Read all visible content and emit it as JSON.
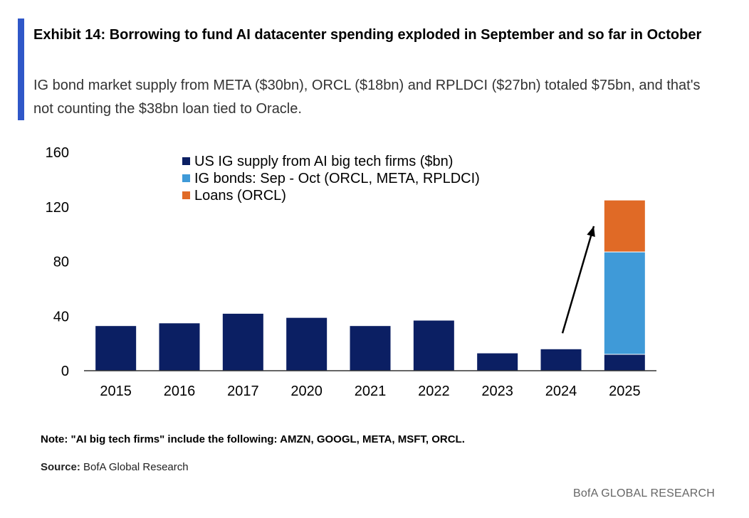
{
  "header": {
    "title": "Exhibit 14: Borrowing to fund AI datacenter spending exploded in September and so far in October",
    "subtitle": "IG bond market supply from META ($30bn), ORCL ($18bn) and RPLDCI ($27bn) totaled $75bn, and that's not counting the $38bn loan tied to Oracle."
  },
  "chart_data": {
    "type": "bar",
    "stacked": true,
    "categories": [
      "2015",
      "2016",
      "2017",
      "2020",
      "2021",
      "2022",
      "2023",
      "2024",
      "2025"
    ],
    "series": [
      {
        "name": "US IG supply from AI big tech firms ($bn)",
        "color": "#0b1f63",
        "values": [
          33,
          35,
          42,
          39,
          33,
          37,
          13,
          16,
          12
        ]
      },
      {
        "name": "IG bonds: Sep - Oct (ORCL, META, RPLDCI)",
        "color": "#3f9ad8",
        "values": [
          0,
          0,
          0,
          0,
          0,
          0,
          0,
          0,
          75
        ]
      },
      {
        "name": "Loans (ORCL)",
        "color": "#e06a26",
        "values": [
          0,
          0,
          0,
          0,
          0,
          0,
          0,
          0,
          38
        ]
      }
    ],
    "ylim": [
      0,
      160
    ],
    "yticks": [
      0,
      40,
      80,
      120,
      160
    ],
    "xlabel": "",
    "ylabel": "",
    "grid": false,
    "legend_position": "top-left",
    "annotation": "arrow from 2024 bar rising to 2025 bar"
  },
  "footer": {
    "note": "Note: \"AI big tech firms\" include the following: AMZN, GOOGL, META, MSFT, ORCL.",
    "source_label": "Source:",
    "source_text": " BofA Global Research",
    "brand": "BofA GLOBAL RESEARCH"
  }
}
